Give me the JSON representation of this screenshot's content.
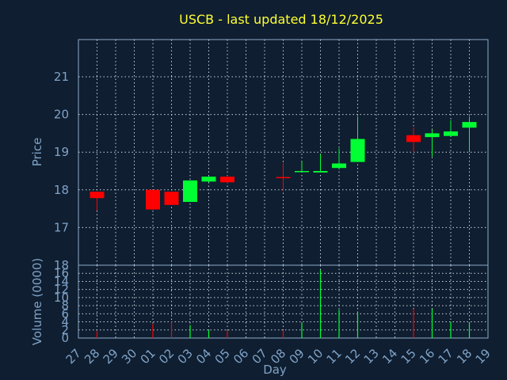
{
  "chart_data": [
    {
      "type": "candlestick",
      "title": "USCB - last updated 18/12/2025",
      "ylabel": "Price",
      "ylim": [
        16,
        21
      ],
      "yticks": [
        17,
        18,
        19,
        20,
        21
      ],
      "grid": true,
      "colors": {
        "up": "#00ff33",
        "down": "#ff0000",
        "axis_text": "#7fa3c8",
        "title": "#ffff33",
        "background": "#0f1e30"
      },
      "categories": [
        "27",
        "28",
        "29",
        "30",
        "01",
        "02",
        "03",
        "04",
        "05",
        "06",
        "07",
        "08",
        "09",
        "10",
        "11",
        "12",
        "13",
        "14",
        "15",
        "16",
        "17",
        "18",
        "19"
      ],
      "candles": [
        {
          "day": "28",
          "open": 17.95,
          "high": 17.95,
          "low": 17.45,
          "close": 17.78
        },
        {
          "day": "01",
          "open": 18.0,
          "high": 18.0,
          "low": 17.47,
          "close": 17.48
        },
        {
          "day": "02",
          "open": 17.95,
          "high": 17.95,
          "low": 17.6,
          "close": 17.6
        },
        {
          "day": "03",
          "open": 17.68,
          "high": 18.25,
          "low": 17.68,
          "close": 18.25
        },
        {
          "day": "04",
          "open": 18.22,
          "high": 18.35,
          "low": 18.2,
          "close": 18.35
        },
        {
          "day": "05",
          "open": 18.35,
          "high": 18.38,
          "low": 18.18,
          "close": 18.2
        },
        {
          "day": "08",
          "open": 18.34,
          "high": 18.72,
          "low": 17.97,
          "close": 18.33
        },
        {
          "day": "09",
          "open": 18.48,
          "high": 18.76,
          "low": 18.47,
          "close": 18.5
        },
        {
          "day": "10",
          "open": 18.46,
          "high": 18.95,
          "low": 18.46,
          "close": 18.5
        },
        {
          "day": "11",
          "open": 18.58,
          "high": 19.1,
          "low": 18.54,
          "close": 18.7
        },
        {
          "day": "12",
          "open": 18.74,
          "high": 19.95,
          "low": 18.74,
          "close": 19.35
        },
        {
          "day": "15",
          "open": 19.45,
          "high": 19.65,
          "low": 19.0,
          "close": 19.27
        },
        {
          "day": "16",
          "open": 19.4,
          "high": 19.6,
          "low": 18.88,
          "close": 19.5
        },
        {
          "day": "17",
          "open": 19.43,
          "high": 19.85,
          "low": 19.43,
          "close": 19.55
        },
        {
          "day": "18",
          "open": 19.65,
          "high": 19.95,
          "low": 19.0,
          "close": 19.8
        }
      ]
    },
    {
      "type": "bar",
      "ylabel": "Volume (0000)",
      "xlabel": "Day",
      "ylim": [
        0,
        18
      ],
      "yticks": [
        0,
        2,
        4,
        6,
        8,
        10,
        12,
        14,
        16,
        18
      ],
      "grid": true,
      "categories": [
        "27",
        "28",
        "29",
        "30",
        "01",
        "02",
        "03",
        "04",
        "05",
        "06",
        "07",
        "08",
        "09",
        "10",
        "11",
        "12",
        "13",
        "14",
        "15",
        "16",
        "17",
        "18",
        "19"
      ],
      "bars": [
        {
          "day": "28",
          "value": 1.7,
          "direction": "down"
        },
        {
          "day": "01",
          "value": 3.5,
          "direction": "down"
        },
        {
          "day": "02",
          "value": 4.0,
          "direction": "down"
        },
        {
          "day": "03",
          "value": 3.2,
          "direction": "up"
        },
        {
          "day": "04",
          "value": 2.0,
          "direction": "up"
        },
        {
          "day": "05",
          "value": 1.8,
          "direction": "down"
        },
        {
          "day": "08",
          "value": 2.0,
          "direction": "down"
        },
        {
          "day": "09",
          "value": 3.8,
          "direction": "up"
        },
        {
          "day": "10",
          "value": 16.8,
          "direction": "up"
        },
        {
          "day": "11",
          "value": 7.0,
          "direction": "up"
        },
        {
          "day": "12",
          "value": 6.2,
          "direction": "up"
        },
        {
          "day": "15",
          "value": 7.2,
          "direction": "down"
        },
        {
          "day": "16",
          "value": 7.2,
          "direction": "up"
        },
        {
          "day": "17",
          "value": 4.0,
          "direction": "up"
        },
        {
          "day": "18",
          "value": 3.8,
          "direction": "up"
        }
      ]
    }
  ]
}
